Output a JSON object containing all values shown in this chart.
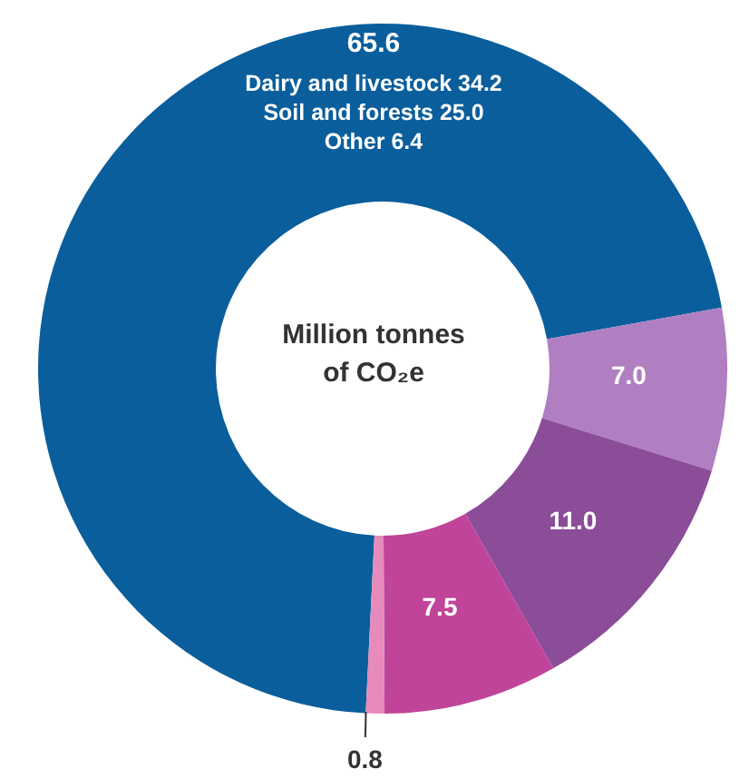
{
  "chart_data": {
    "type": "donut",
    "title": "Million tonnes of CO₂e",
    "categories": [
      null,
      null,
      null,
      null,
      null
    ],
    "values": [
      65.6,
      7.0,
      11.0,
      7.5,
      0.8
    ],
    "colors": [
      "#0a5e9c",
      "#b07fc2",
      "#8b4c98",
      "#c1449b",
      "#e68bbb"
    ],
    "value_labels": [
      "65.6",
      "7.0",
      "11.0",
      "7.5",
      "0.8"
    ],
    "annotations": [
      "Dairy and livestock 34.2",
      "Soil and forests 25.0",
      "Other 6.4"
    ],
    "legend": false
  }
}
